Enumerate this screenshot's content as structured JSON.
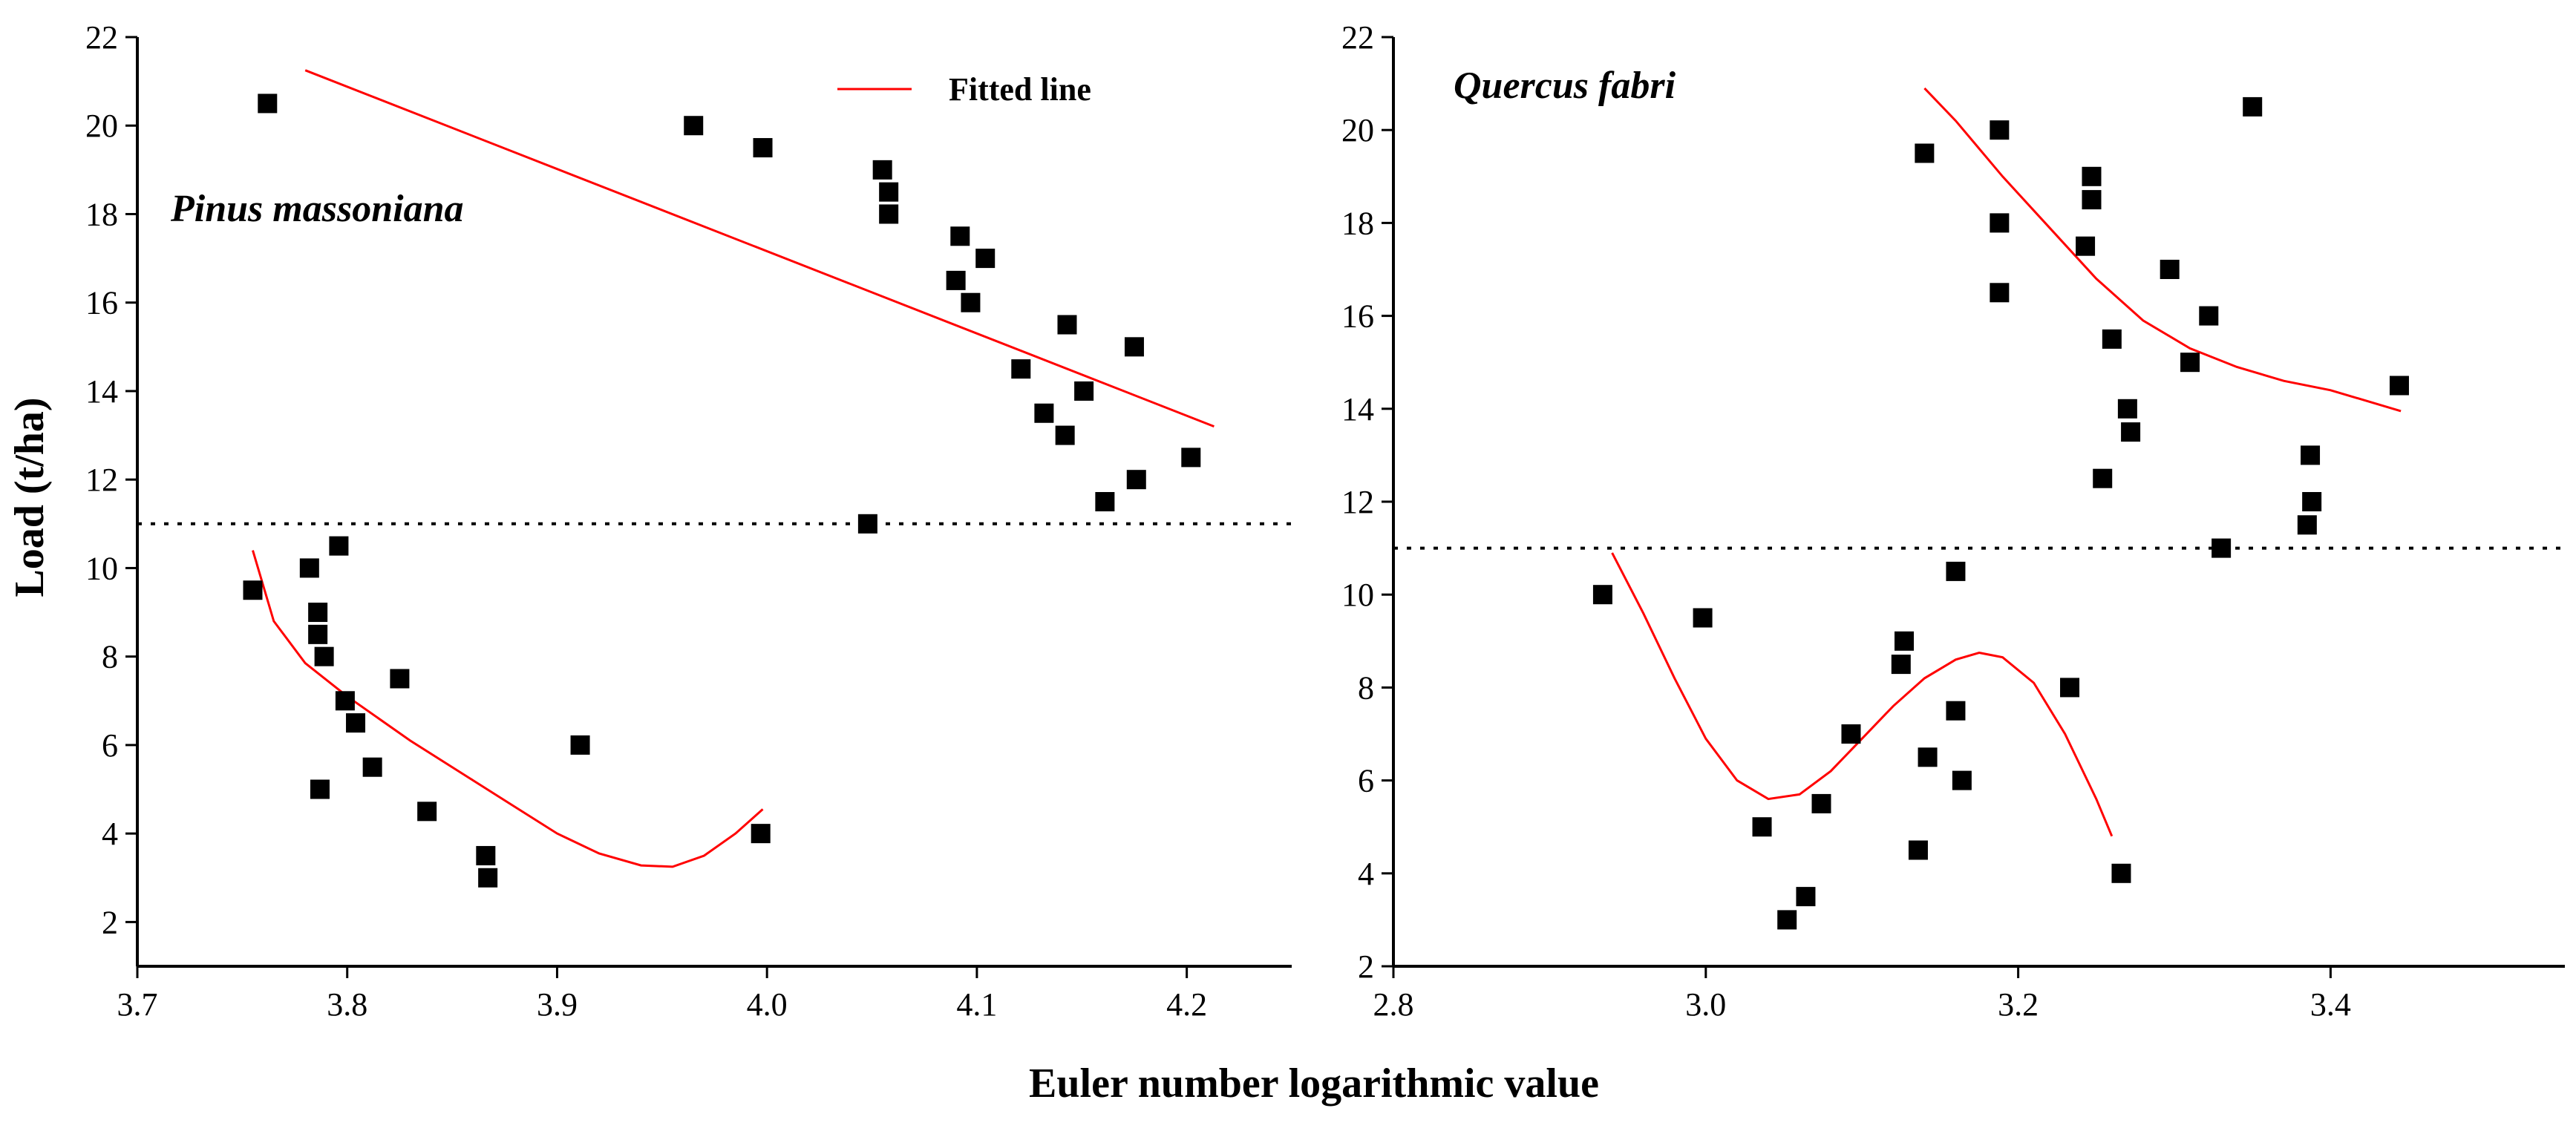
{
  "figure": {
    "xlabel": "Euler number logarithmic value",
    "ylabel": "Load (t/ha)",
    "legend_label": "Fitted line"
  },
  "colors": {
    "fit_line": "#ff0000",
    "marker": "#000000",
    "axis": "#000000"
  },
  "chart_data": [
    {
      "type": "scatter",
      "species_label": "Pinus massoniana",
      "xlim": [
        3.7,
        4.25
      ],
      "ylim": [
        1,
        22
      ],
      "x_ticks": [
        "3.7",
        "3.8",
        "3.9",
        "4.0",
        "4.1",
        "4.2"
      ],
      "y_ticks": [
        "2",
        "4",
        "6",
        "8",
        "10",
        "12",
        "14",
        "16",
        "18",
        "20",
        "22"
      ],
      "threshold": 11,
      "legend": "top-right",
      "points": [
        [
          3.762,
          20.5
        ],
        [
          3.965,
          20
        ],
        [
          3.998,
          19.5
        ],
        [
          4.055,
          19
        ],
        [
          4.058,
          18.5
        ],
        [
          4.058,
          18
        ],
        [
          4.092,
          17.5
        ],
        [
          4.104,
          17
        ],
        [
          4.09,
          16.5
        ],
        [
          4.097,
          16
        ],
        [
          4.143,
          15.5
        ],
        [
          4.175,
          15
        ],
        [
          4.121,
          14.5
        ],
        [
          4.151,
          14
        ],
        [
          4.132,
          13.5
        ],
        [
          4.142,
          13
        ],
        [
          4.202,
          12.5
        ],
        [
          4.176,
          12
        ],
        [
          4.161,
          11.5
        ],
        [
          4.048,
          11
        ],
        [
          3.796,
          10.5
        ],
        [
          3.782,
          10
        ],
        [
          3.755,
          9.5
        ],
        [
          3.786,
          9
        ],
        [
          3.786,
          8.5
        ],
        [
          3.789,
          8
        ],
        [
          3.825,
          7.5
        ],
        [
          3.799,
          7
        ],
        [
          3.804,
          6.5
        ],
        [
          3.911,
          6
        ],
        [
          3.812,
          5.5
        ],
        [
          3.787,
          5
        ],
        [
          3.838,
          4.5
        ],
        [
          3.997,
          4
        ],
        [
          3.866,
          3.5
        ],
        [
          3.867,
          3
        ]
      ],
      "fitted_lines": [
        [
          [
            3.78,
            21.25
          ],
          [
            4.213,
            13.2
          ]
        ],
        [
          [
            3.755,
            10.4
          ],
          [
            3.765,
            8.8
          ],
          [
            3.78,
            7.85
          ],
          [
            3.8,
            7.1
          ],
          [
            3.83,
            6.1
          ],
          [
            3.86,
            5.2
          ],
          [
            3.88,
            4.6
          ],
          [
            3.9,
            4.0
          ],
          [
            3.92,
            3.55
          ],
          [
            3.94,
            3.28
          ],
          [
            3.955,
            3.25
          ],
          [
            3.97,
            3.5
          ],
          [
            3.985,
            4.0
          ],
          [
            3.998,
            4.55
          ]
        ]
      ]
    },
    {
      "type": "scatter",
      "species_label": "Quercus fabri",
      "xlim": [
        2.8,
        3.55
      ],
      "ylim": [
        2,
        22
      ],
      "x_ticks": [
        "2.8",
        "3.0",
        "3.2",
        "3.4"
      ],
      "y_ticks": [
        "2",
        "4",
        "6",
        "8",
        "10",
        "12",
        "14",
        "16",
        "18",
        "20",
        "22"
      ],
      "threshold": 11,
      "points": [
        [
          3.35,
          20.5
        ],
        [
          3.188,
          20
        ],
        [
          3.14,
          19.5
        ],
        [
          3.247,
          19
        ],
        [
          3.247,
          18.5
        ],
        [
          3.188,
          18
        ],
        [
          3.243,
          17.5
        ],
        [
          3.297,
          17
        ],
        [
          3.188,
          16.5
        ],
        [
          3.322,
          16
        ],
        [
          3.26,
          15.5
        ],
        [
          3.31,
          15
        ],
        [
          3.444,
          14.5
        ],
        [
          3.27,
          14
        ],
        [
          3.272,
          13.5
        ],
        [
          3.387,
          13
        ],
        [
          3.254,
          12.5
        ],
        [
          3.388,
          12
        ],
        [
          3.385,
          11.5
        ],
        [
          3.33,
          11
        ],
        [
          3.16,
          10.5
        ],
        [
          2.934,
          10
        ],
        [
          2.998,
          9.5
        ],
        [
          3.127,
          9
        ],
        [
          3.125,
          8.5
        ],
        [
          3.233,
          8
        ],
        [
          3.16,
          7.5
        ],
        [
          3.093,
          7
        ],
        [
          3.142,
          6.5
        ],
        [
          3.164,
          6
        ],
        [
          3.074,
          5.5
        ],
        [
          3.036,
          5
        ],
        [
          3.136,
          4.5
        ],
        [
          3.266,
          4
        ],
        [
          3.064,
          3.5
        ],
        [
          3.052,
          3
        ]
      ],
      "fitted_lines": [
        [
          [
            3.14,
            20.9
          ],
          [
            3.16,
            20.2
          ],
          [
            3.19,
            19.0
          ],
          [
            3.22,
            17.9
          ],
          [
            3.25,
            16.8
          ],
          [
            3.28,
            15.9
          ],
          [
            3.31,
            15.3
          ],
          [
            3.34,
            14.9
          ],
          [
            3.37,
            14.6
          ],
          [
            3.4,
            14.4
          ],
          [
            3.445,
            13.95
          ]
        ],
        [
          [
            2.94,
            10.9
          ],
          [
            2.96,
            9.6
          ],
          [
            2.98,
            8.2
          ],
          [
            3.0,
            6.9
          ],
          [
            3.02,
            6.0
          ],
          [
            3.04,
            5.6
          ],
          [
            3.06,
            5.7
          ],
          [
            3.08,
            6.2
          ],
          [
            3.1,
            6.9
          ],
          [
            3.12,
            7.6
          ],
          [
            3.14,
            8.2
          ],
          [
            3.16,
            8.6
          ],
          [
            3.175,
            8.75
          ],
          [
            3.19,
            8.65
          ],
          [
            3.21,
            8.1
          ],
          [
            3.23,
            7.0
          ],
          [
            3.25,
            5.6
          ],
          [
            3.26,
            4.8
          ]
        ]
      ]
    }
  ]
}
